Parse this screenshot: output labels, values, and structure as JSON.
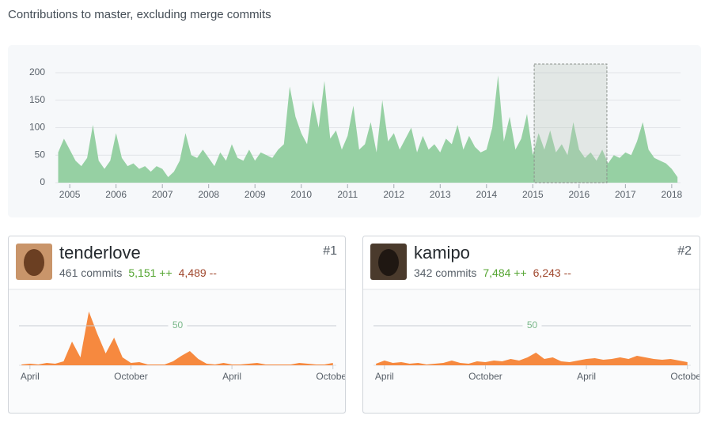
{
  "header": {
    "title": "Contributions to master, excluding merge commits"
  },
  "chart": {
    "type": "area",
    "color": "#96d0a3",
    "x": [
      2004.75,
      2004.875,
      2005,
      2005.125,
      2005.25,
      2005.375,
      2005.5,
      2005.625,
      2005.75,
      2005.875,
      2006,
      2006.125,
      2006.25,
      2006.375,
      2006.5,
      2006.625,
      2006.75,
      2006.875,
      2007,
      2007.125,
      2007.25,
      2007.375,
      2007.5,
      2007.625,
      2007.75,
      2007.875,
      2008,
      2008.125,
      2008.25,
      2008.375,
      2008.5,
      2008.625,
      2008.75,
      2008.875,
      2009,
      2009.125,
      2009.25,
      2009.375,
      2009.5,
      2009.625,
      2009.75,
      2009.875,
      2010,
      2010.125,
      2010.25,
      2010.375,
      2010.5,
      2010.625,
      2010.75,
      2010.875,
      2011,
      2011.125,
      2011.25,
      2011.375,
      2011.5,
      2011.625,
      2011.75,
      2011.875,
      2012,
      2012.125,
      2012.25,
      2012.375,
      2012.5,
      2012.625,
      2012.75,
      2012.875,
      2013,
      2013.125,
      2013.25,
      2013.375,
      2013.5,
      2013.625,
      2013.75,
      2013.875,
      2014,
      2014.125,
      2014.25,
      2014.375,
      2014.5,
      2014.625,
      2014.75,
      2014.875,
      2015,
      2015.125,
      2015.25,
      2015.375,
      2015.5,
      2015.625,
      2015.75,
      2015.875,
      2016,
      2016.125,
      2016.25,
      2016.375,
      2016.5,
      2016.625,
      2016.75,
      2016.875,
      2017,
      2017.125,
      2017.25,
      2017.375,
      2017.5,
      2017.625,
      2017.75,
      2017.875,
      2018,
      2018.125
    ],
    "values": [
      55,
      80,
      60,
      40,
      30,
      45,
      105,
      40,
      25,
      40,
      90,
      45,
      30,
      35,
      25,
      30,
      20,
      30,
      25,
      10,
      20,
      40,
      90,
      50,
      45,
      60,
      45,
      30,
      55,
      40,
      70,
      45,
      40,
      60,
      40,
      55,
      50,
      45,
      60,
      70,
      175,
      120,
      90,
      70,
      150,
      100,
      185,
      80,
      95,
      60,
      85,
      140,
      60,
      70,
      110,
      55,
      150,
      75,
      90,
      60,
      80,
      100,
      55,
      85,
      60,
      70,
      55,
      80,
      70,
      105,
      60,
      85,
      65,
      55,
      60,
      100,
      195,
      75,
      120,
      60,
      80,
      125,
      50,
      90,
      60,
      95,
      55,
      70,
      50,
      110,
      60,
      45,
      55,
      40,
      60,
      35,
      50,
      45,
      55,
      50,
      75,
      110,
      60,
      45,
      40,
      35,
      25,
      10
    ],
    "xlim": [
      2004.69,
      2018.19
    ],
    "xticks": [
      2005,
      2006,
      2007,
      2008,
      2009,
      2010,
      2011,
      2012,
      2013,
      2014,
      2015,
      2016,
      2017,
      2018
    ],
    "ylim": [
      0,
      210
    ],
    "yticks": [
      0,
      50,
      100,
      150,
      200
    ],
    "grid": true,
    "selection": [
      2015.03,
      2016.6
    ]
  },
  "contributors": [
    {
      "name": "tenderlove",
      "commits": "461 commits",
      "additions": "5,151 ++",
      "deletions": "4,489 --",
      "rank": "#1",
      "chart": {
        "type": "area",
        "color": "#f6893f",
        "x": [
          -0.5,
          0,
          0.5,
          1,
          1.5,
          2,
          2.5,
          3,
          3.5,
          4,
          4.5,
          5,
          5.5,
          6,
          6.5,
          7,
          7.5,
          8,
          8.5,
          9,
          9.5,
          10,
          10.5,
          11,
          11.5,
          12,
          12.5,
          13,
          13.5,
          14,
          14.5,
          15,
          15.5,
          16,
          16.5,
          17,
          17.5,
          18
        ],
        "values": [
          1,
          2,
          1,
          3,
          2,
          5,
          30,
          10,
          68,
          40,
          15,
          35,
          10,
          3,
          4,
          1,
          1,
          1,
          5,
          12,
          18,
          8,
          2,
          1,
          3,
          1,
          1,
          2,
          3,
          1,
          1,
          1,
          1,
          3,
          2,
          1,
          1,
          3
        ],
        "xlim": [
          -0.65,
          18.2
        ],
        "xticks": [
          {
            "value": 0,
            "label": "April"
          },
          {
            "value": 6,
            "label": "October"
          },
          {
            "value": 12,
            "label": "April"
          },
          {
            "value": 18,
            "label": "October"
          }
        ],
        "ylim": [
          0,
          82
        ],
        "yticks": [
          50
        ]
      }
    },
    {
      "name": "kamipo",
      "commits": "342 commits",
      "additions": "7,484 ++",
      "deletions": "6,243 --",
      "rank": "#2",
      "chart": {
        "type": "area",
        "color": "#f6893f",
        "x": [
          -0.5,
          0,
          0.5,
          1,
          1.5,
          2,
          2.5,
          3,
          3.5,
          4,
          4.5,
          5,
          5.5,
          6,
          6.5,
          7,
          7.5,
          8,
          8.5,
          9,
          9.5,
          10,
          10.5,
          11,
          11.5,
          12,
          12.5,
          13,
          13.5,
          14,
          14.5,
          15,
          15.5,
          16,
          16.5,
          17,
          17.5,
          18
        ],
        "values": [
          2,
          6,
          3,
          4,
          2,
          3,
          1,
          2,
          3,
          6,
          3,
          2,
          5,
          4,
          6,
          5,
          8,
          6,
          10,
          16,
          8,
          10,
          5,
          4,
          6,
          8,
          9,
          7,
          8,
          10,
          8,
          12,
          10,
          8,
          7,
          8,
          6,
          4
        ],
        "xlim": [
          -0.65,
          18.2
        ],
        "xticks": [
          {
            "value": 0,
            "label": "April"
          },
          {
            "value": 6,
            "label": "October"
          },
          {
            "value": 12,
            "label": "April"
          },
          {
            "value": 18,
            "label": "October"
          }
        ],
        "ylim": [
          0,
          82
        ],
        "yticks": [
          50
        ]
      }
    }
  ]
}
